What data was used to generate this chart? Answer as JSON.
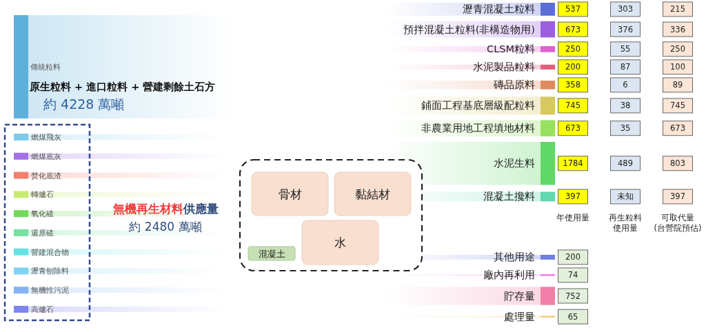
{
  "chart_data": [
    {
      "type": "other",
      "categories": [
        "傳統粒料",
        "燃煤飛灰",
        "燃煤底灰",
        "焚化底渣",
        "轉爐石",
        "氧化碴",
        "還原碴",
        "營建混合物",
        "瀝青刨除料",
        "無機性污泥",
        "高爐石"
      ],
      "colors": [
        "#5cb0da",
        "#7ecbec",
        "#a472e6",
        "#f08070",
        "#c8ea70",
        "#72da5a",
        "#74e2a2",
        "#66e2e2",
        "#82d2f2",
        "#84b4f2",
        "#7e84f0"
      ],
      "annotations": [
        "原生粒料 + 進口粒料 + 營建剩餘土石方",
        "約 4228 萬噸",
        "無機再生材料",
        "供應量",
        "約 2480 萬噸"
      ]
    },
    {
      "type": "other",
      "title": "混凝土",
      "categories": [
        "骨材",
        "黏結材",
        "水"
      ],
      "colors": [
        "#f9dfcf",
        "#f9dfcf",
        "#f9dfcf"
      ]
    },
    {
      "type": "other",
      "categories": [
        "瀝青混凝土粒料",
        "預拌混凝土粒料(非構造物用)",
        "CLSM粒料",
        "水泥製品粒料",
        "磚品原料",
        "鋪面工程基底層級配粒料",
        "非農業用地工程填地材料",
        "水泥生料",
        "混凝土攙料",
        "其他用途",
        "廠內再利用",
        "貯存量",
        "處理量"
      ],
      "colors": [
        "#5b6ed8",
        "#9b5fe0",
        "#e060d0",
        "#e0607e",
        "#e08a60",
        "#d8c860",
        "#98e060",
        "#60d868",
        "#60d8b0",
        "#6f7fe0",
        "#f07ef0",
        "#f080a8",
        "#f0c870"
      ],
      "data_labels": true,
      "series": [
        {
          "name": "年使用量",
          "values": [
            537,
            673,
            250,
            200,
            358,
            745,
            673,
            1784,
            397,
            200,
            74,
            752,
            65
          ],
          "colors": [
            "#ffff00",
            "#ffff00",
            "#ffff00",
            "#ffff00",
            "#ffff00",
            "#ffff00",
            "#ffff00",
            "#ffff00",
            "#ffff00",
            "#e2efda",
            "#e2efda",
            "#e2efda",
            "#e2efda"
          ]
        },
        {
          "name": "再生粒料使用量",
          "color": "#dce6f2",
          "values": [
            303,
            376,
            55,
            87,
            6,
            38,
            35,
            489,
            null,
            null,
            null,
            null,
            null
          ],
          "value_labels": [
            "303",
            "376",
            "55",
            "87",
            "6",
            "38",
            "35",
            "489",
            "未知",
            null,
            null,
            null,
            null
          ]
        },
        {
          "name": "可取代量(台營院預估)",
          "color": "#fbe5d6",
          "values": [
            215,
            336,
            250,
            100,
            89,
            745,
            673,
            803,
            397,
            null,
            null,
            null,
            null
          ]
        }
      ]
    }
  ]
}
